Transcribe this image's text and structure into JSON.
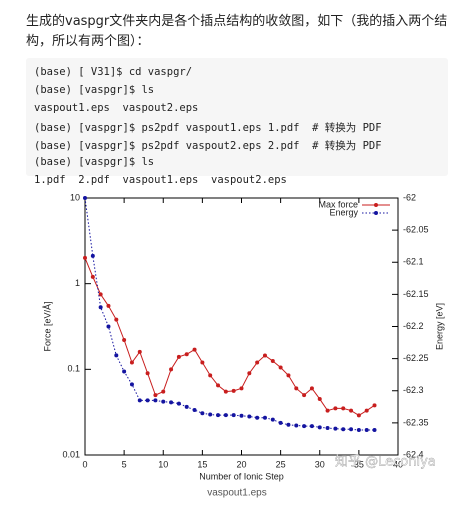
{
  "text": "生成的vaspgr文件夹内是各个插点结构的收敛图，如下（我的插入两个结构，所以有两个图）：",
  "code": {
    "lines": [
      "(base) [ V31]$ cd vaspgr/",
      "(base) [vaspgr]$ ls",
      "vaspout1.eps  vaspout2.eps",
      "(base) [vaspgr]$ ps2pdf vaspout1.eps 1.pdf  # 转换为 PDF",
      "(base) [vaspgr]$ ps2pdf vaspout2.eps 2.pdf  # 转换为 PDF",
      "(base) [vaspgr]$ ls",
      "1.pdf  2.pdf  vaspout1.eps  vaspout2.eps"
    ]
  },
  "chart_data": {
    "type": "line",
    "xlabel": "Number of Ionic Step",
    "ylabel": "Force [eV/Å]",
    "y2label": "Energy [eV]",
    "x": [
      0,
      1,
      2,
      3,
      4,
      5,
      6,
      7,
      8,
      9,
      10,
      11,
      12,
      13,
      14,
      15,
      16,
      17,
      18,
      19,
      20,
      21,
      22,
      23,
      24,
      25,
      26,
      27,
      28,
      29,
      30,
      31,
      32,
      33,
      34,
      35,
      36,
      37
    ],
    "series": [
      {
        "name": "Max force",
        "color": "#c81e1e",
        "values": [
          2.0,
          1.2,
          0.75,
          0.55,
          0.38,
          0.22,
          0.12,
          0.16,
          0.09,
          0.05,
          0.055,
          0.1,
          0.14,
          0.15,
          0.17,
          0.12,
          0.085,
          0.065,
          0.055,
          0.056,
          0.06,
          0.09,
          0.12,
          0.145,
          0.125,
          0.105,
          0.085,
          0.06,
          0.05,
          0.06,
          0.045,
          0.033,
          0.035,
          0.035,
          0.033,
          0.029,
          0.033,
          0.038
        ]
      },
      {
        "name": "Energy",
        "color": "#1414a0",
        "axis": "y2",
        "values": [
          -62.0,
          -62.09,
          -62.17,
          -62.2,
          -62.245,
          -62.27,
          -62.29,
          -62.315,
          -62.315,
          -62.315,
          -62.317,
          -62.318,
          -62.32,
          -62.325,
          -62.33,
          -62.335,
          -62.337,
          -62.338,
          -62.338,
          -62.338,
          -62.339,
          -62.34,
          -62.342,
          -62.342,
          -62.345,
          -62.35,
          -62.353,
          -62.354,
          -62.355,
          -62.355,
          -62.357,
          -62.358,
          -62.359,
          -62.36,
          -62.36,
          -62.361,
          -62.361,
          -62.361
        ]
      }
    ],
    "xlim": [
      0,
      40
    ],
    "xticks": [
      0,
      5,
      10,
      15,
      20,
      25,
      30,
      35,
      40
    ],
    "ylim": [
      0.01,
      10
    ],
    "yticks": [
      0.01,
      0.1,
      1,
      10
    ],
    "ylog": true,
    "y2lim": [
      -62.4,
      -62
    ],
    "y2ticks": [
      -62.4,
      -62.35,
      -62.3,
      -62.25,
      -62.2,
      -62.15,
      -62.1,
      -62.05,
      -62
    ],
    "legend": "upper right"
  },
  "watermark": "知乎 @Leconiya",
  "caption": "vaspout1.eps"
}
